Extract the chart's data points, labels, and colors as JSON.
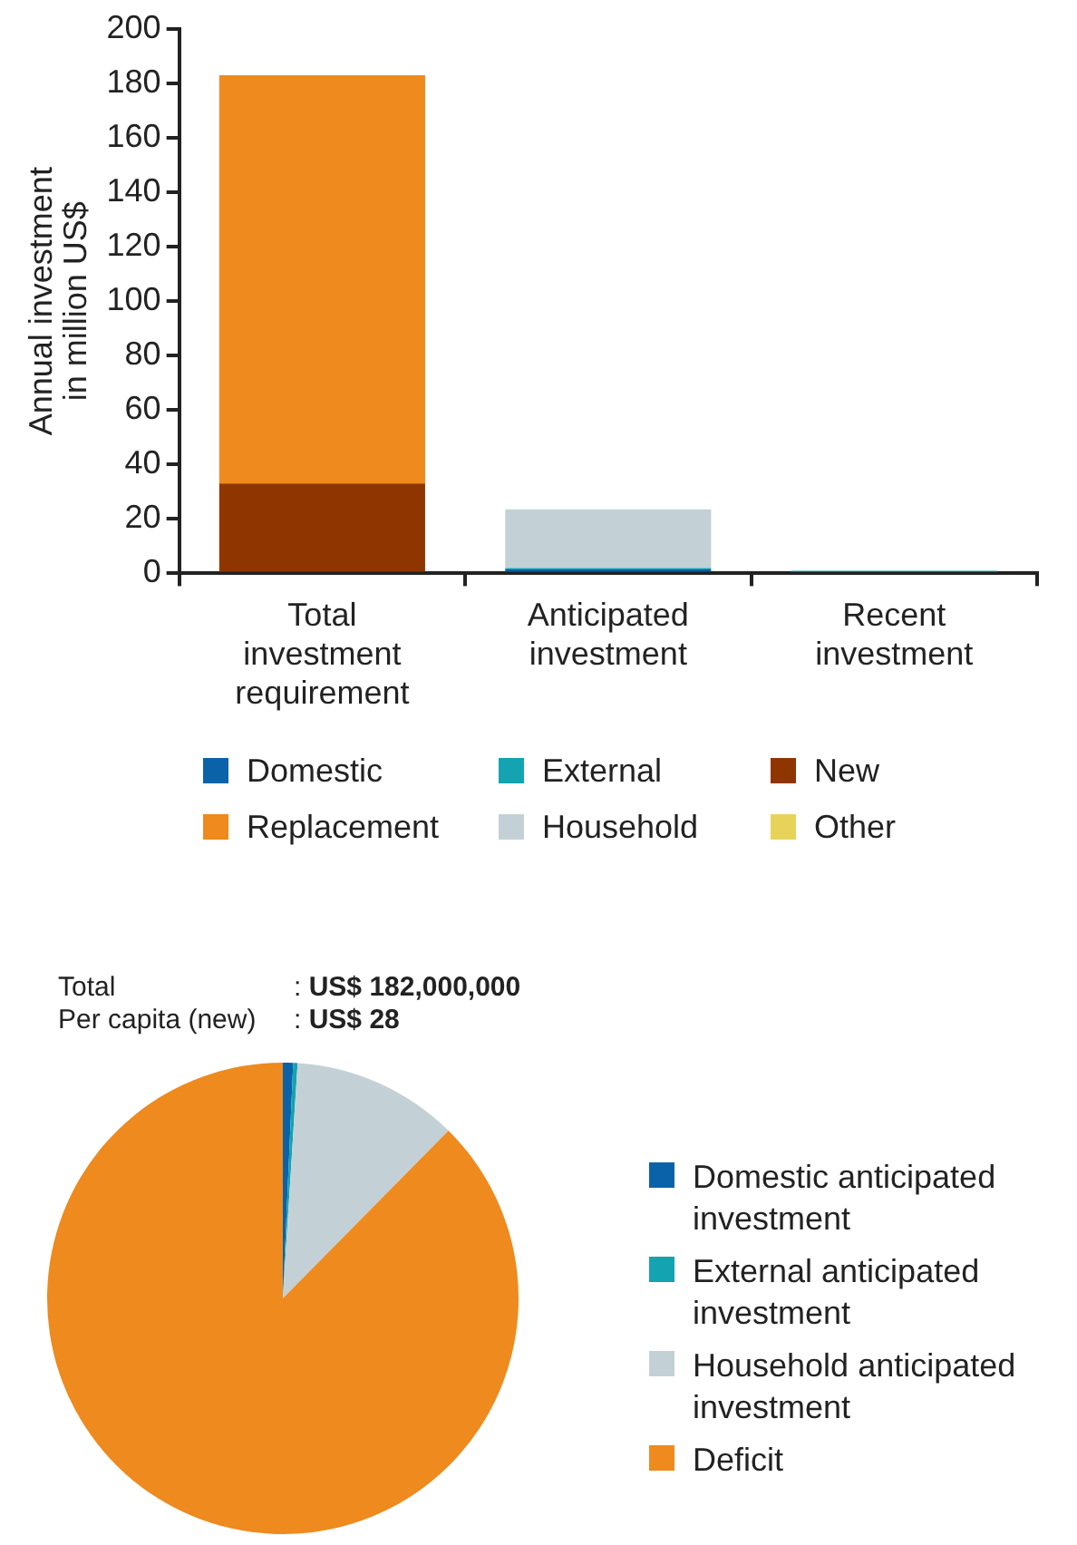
{
  "chart_data": [
    {
      "type": "bar",
      "stacked": true,
      "ylabel": "Annual investment in million US$",
      "categories": [
        "Total investment requirement",
        "Anticipated investment",
        "Recent investment"
      ],
      "ylim": [
        0,
        200
      ],
      "yticks": [
        0,
        20,
        40,
        60,
        80,
        100,
        120,
        140,
        160,
        180,
        200
      ],
      "grid": false,
      "legend": "bottom",
      "series": [
        {
          "name": "Domestic",
          "color": "#0a62a8",
          "values": [
            0,
            1.5,
            0
          ]
        },
        {
          "name": "External",
          "color": "#14a3b0",
          "values": [
            0,
            0.5,
            1
          ]
        },
        {
          "name": "New",
          "color": "#8f3600",
          "values": [
            33,
            0,
            0
          ]
        },
        {
          "name": "Replacement",
          "color": "#ee8a1e",
          "values": [
            150,
            0,
            0
          ]
        },
        {
          "name": "Household",
          "color": "#c3d1d6",
          "values": [
            0,
            21.5,
            0
          ]
        },
        {
          "name": "Other",
          "color": "#e8d35a",
          "values": [
            0,
            0,
            0
          ]
        }
      ]
    },
    {
      "type": "pie",
      "annotations": [
        "Total : US$ 182,000,000",
        "Per capita (new) : US$ 28"
      ],
      "legend": "right",
      "categories": [
        "Domestic anticipated investment",
        "External anticipated investment",
        "Household anticipated investment",
        "Deficit"
      ],
      "values": [
        0.7,
        0.3,
        11.4,
        87.6
      ],
      "colors": [
        "#0a62a8",
        "#14a3b0",
        "#c3d1d6",
        "#ee8a1e"
      ]
    }
  ]
}
